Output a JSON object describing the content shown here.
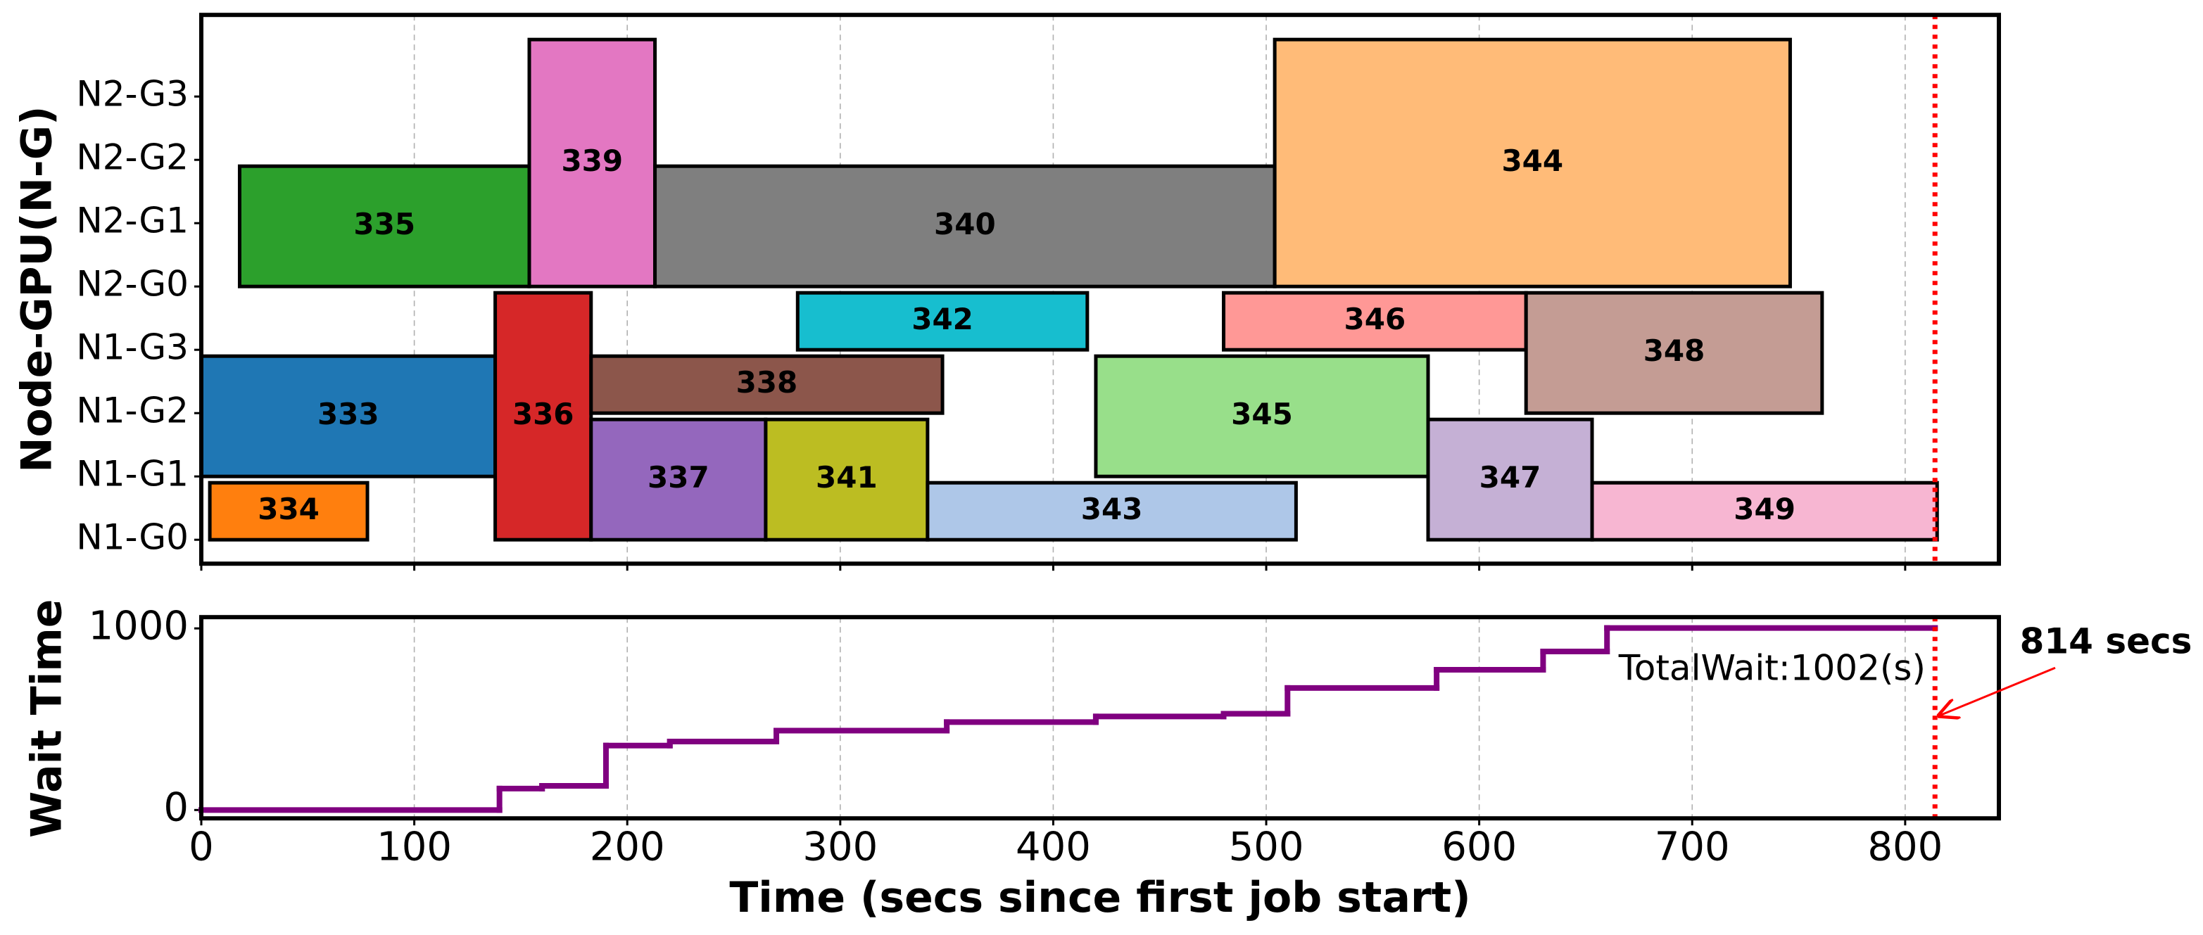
{
  "chart_data": [
    {
      "type": "gantt",
      "ylabel": "Node-GPU(N-G)",
      "categories": [
        "N1-G0",
        "N1-G1",
        "N1-G2",
        "N1-G3",
        "N2-G0",
        "N2-G1",
        "N2-G2",
        "N2-G3"
      ],
      "xlim": [
        0,
        844
      ],
      "xticks": [
        0,
        100,
        200,
        300,
        400,
        500,
        600,
        700,
        800
      ],
      "grid": true,
      "vline": 814,
      "vline_color": "#ff0000",
      "jobs": [
        {
          "name": "333",
          "start": 0,
          "end": 138,
          "gpus": [
            "N1-G1",
            "N1-G2"
          ],
          "color": "#1f77b4"
        },
        {
          "name": "334",
          "start": 4,
          "end": 78,
          "gpus": [
            "N1-G0"
          ],
          "color": "#ff7f0e"
        },
        {
          "name": "335",
          "start": 18,
          "end": 154,
          "gpus": [
            "N2-G0",
            "N2-G1"
          ],
          "color": "#2ca02c"
        },
        {
          "name": "336",
          "start": 138,
          "end": 183,
          "gpus": [
            "N1-G0",
            "N1-G1",
            "N1-G2",
            "N1-G3"
          ],
          "color": "#d62728"
        },
        {
          "name": "337",
          "start": 183,
          "end": 265,
          "gpus": [
            "N1-G0",
            "N1-G1"
          ],
          "color": "#9467bd"
        },
        {
          "name": "338",
          "start": 183,
          "end": 348,
          "gpus": [
            "N1-G2"
          ],
          "color": "#8c564b"
        },
        {
          "name": "339",
          "start": 154,
          "end": 213,
          "gpus": [
            "N2-G0",
            "N2-G1",
            "N2-G2",
            "N2-G3"
          ],
          "color": "#e377c2"
        },
        {
          "name": "340",
          "start": 213,
          "end": 504,
          "gpus": [
            "N2-G0",
            "N2-G1"
          ],
          "color": "#7f7f7f"
        },
        {
          "name": "341",
          "start": 265,
          "end": 341,
          "gpus": [
            "N1-G0",
            "N1-G1"
          ],
          "color": "#bcbd22"
        },
        {
          "name": "342",
          "start": 280,
          "end": 416,
          "gpus": [
            "N1-G3"
          ],
          "color": "#17becf"
        },
        {
          "name": "343",
          "start": 341,
          "end": 514,
          "gpus": [
            "N1-G0"
          ],
          "color": "#aec7e8"
        },
        {
          "name": "344",
          "start": 504,
          "end": 746,
          "gpus": [
            "N2-G0",
            "N2-G1",
            "N2-G2",
            "N2-G3"
          ],
          "color": "#ffbb78"
        },
        {
          "name": "345",
          "start": 420,
          "end": 576,
          "gpus": [
            "N1-G1",
            "N1-G2"
          ],
          "color": "#98df8a"
        },
        {
          "name": "346",
          "start": 480,
          "end": 622,
          "gpus": [
            "N1-G3"
          ],
          "color": "#ff9896"
        },
        {
          "name": "347",
          "start": 576,
          "end": 653,
          "gpus": [
            "N1-G0",
            "N1-G1"
          ],
          "color": "#c5b0d5"
        },
        {
          "name": "348",
          "start": 622,
          "end": 761,
          "gpus": [
            "N1-G2",
            "N1-G3"
          ],
          "color": "#c49c94"
        },
        {
          "name": "349",
          "start": 653,
          "end": 815,
          "gpus": [
            "N1-G0"
          ],
          "color": "#f7b6d2"
        }
      ]
    },
    {
      "type": "step",
      "ylabel": "Wait Time",
      "xlabel": "Time (secs since first job start)",
      "x": [
        0,
        140,
        160,
        190,
        220,
        270,
        350,
        420,
        480,
        510,
        580,
        630,
        660,
        814
      ],
      "values": [
        0,
        118,
        133,
        355,
        377,
        437,
        484,
        515,
        530,
        672,
        772,
        873,
        1002,
        1002
      ],
      "color": "#800080",
      "xlim": [
        0,
        844
      ],
      "xticks": [
        0,
        100,
        200,
        300,
        400,
        500,
        600,
        700,
        800
      ],
      "ylim": [
        -46,
        1062
      ],
      "yticks": [
        0,
        1000
      ],
      "grid": true,
      "vline": 814,
      "vline_color": "#ff0000",
      "annotations": [
        {
          "text": "TotalWait:1002(s)",
          "color": "#800080"
        },
        {
          "text": "814 secs",
          "color": "#ff0000"
        }
      ]
    }
  ]
}
